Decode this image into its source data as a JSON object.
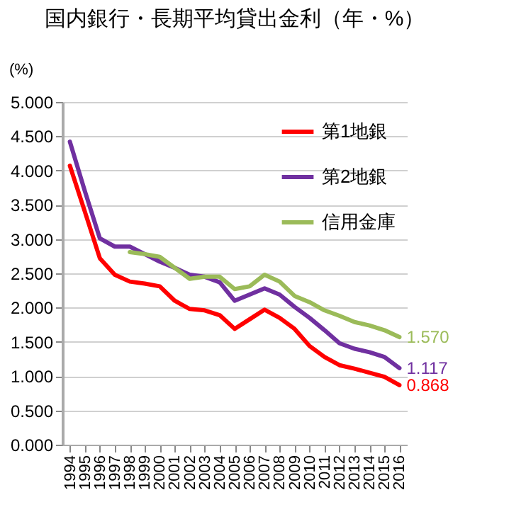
{
  "chart_data": {
    "type": "line",
    "title": "国内銀行・長期平均貸出金利（年・%）",
    "ylabel": "(%)",
    "categories": [
      "1994",
      "1995",
      "1996",
      "1997",
      "1998",
      "1999",
      "2000",
      "2001",
      "2002",
      "2003",
      "2004",
      "2005",
      "2006",
      "2007",
      "2008",
      "2009",
      "2010",
      "2011",
      "2012",
      "2013",
      "2014",
      "2015",
      "2016"
    ],
    "series": [
      {
        "name": "第1地銀",
        "color": "#ff0000",
        "values": [
          4.07,
          3.4,
          2.72,
          2.48,
          2.38,
          2.35,
          2.31,
          2.1,
          1.98,
          1.96,
          1.89,
          1.69,
          1.83,
          1.97,
          1.85,
          1.69,
          1.44,
          1.28,
          1.16,
          1.11,
          1.05,
          0.99,
          0.868
        ],
        "value_labels": [
          null,
          null,
          null,
          null,
          null,
          null,
          null,
          null,
          null,
          null,
          null,
          null,
          null,
          null,
          null,
          null,
          null,
          null,
          null,
          null,
          null,
          null,
          "0.868"
        ]
      },
      {
        "name": "第2地銀",
        "color": "#7030a0",
        "values": [
          4.42,
          3.7,
          3.01,
          2.89,
          2.89,
          2.78,
          2.67,
          2.58,
          2.48,
          2.45,
          2.37,
          2.1,
          2.19,
          2.28,
          2.19,
          2.01,
          1.85,
          1.67,
          1.48,
          1.4,
          1.35,
          1.28,
          1.117
        ],
        "value_labels": [
          null,
          null,
          null,
          null,
          null,
          null,
          null,
          null,
          null,
          null,
          null,
          null,
          null,
          null,
          null,
          null,
          null,
          null,
          null,
          null,
          null,
          null,
          "1.117"
        ]
      },
      {
        "name": "信用金庫",
        "color": "#9bbb59",
        "values": [
          null,
          null,
          null,
          null,
          2.81,
          2.78,
          2.74,
          2.58,
          2.42,
          2.45,
          2.45,
          2.27,
          2.31,
          2.48,
          2.38,
          2.17,
          2.08,
          1.96,
          1.88,
          1.79,
          1.74,
          1.67,
          1.57
        ],
        "value_labels": [
          null,
          null,
          null,
          null,
          null,
          null,
          null,
          null,
          null,
          null,
          null,
          null,
          null,
          null,
          null,
          null,
          null,
          null,
          null,
          null,
          null,
          null,
          "1.570"
        ]
      }
    ],
    "ylim": [
      0,
      5
    ],
    "yticks": [
      {
        "value": 0,
        "label": "0.000"
      },
      {
        "value": 0.5,
        "label": "0.500"
      },
      {
        "value": 1,
        "label": "1.000"
      },
      {
        "value": 1.5,
        "label": "1.500"
      },
      {
        "value": 2,
        "label": "2.000"
      },
      {
        "value": 2.5,
        "label": "2.500"
      },
      {
        "value": 3,
        "label": "3.000"
      },
      {
        "value": 3.5,
        "label": "3.500"
      },
      {
        "value": 4,
        "label": "4.000"
      },
      {
        "value": 4.5,
        "label": "4.500"
      },
      {
        "value": 5,
        "label": "5.000"
      }
    ],
    "grid": "y",
    "legend": "top right",
    "line_style": "solid"
  }
}
